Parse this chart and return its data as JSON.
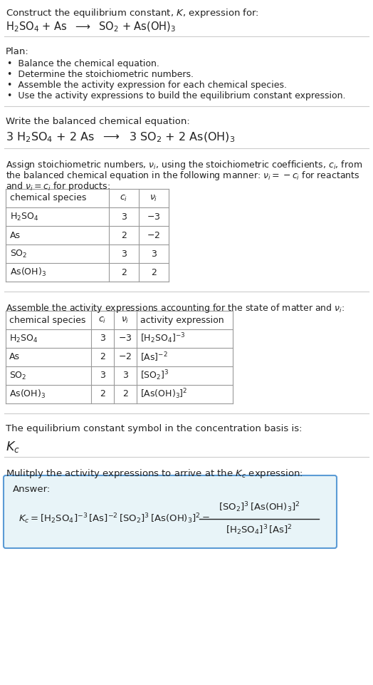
{
  "title_line1": "Construct the equilibrium constant, $K$, expression for:",
  "title_line2": "$\\mathrm{H_2SO_4}$ + As  $\\longrightarrow$  $\\mathrm{SO_2}$ + $\\mathrm{As(OH)_3}$",
  "plan_header": "Plan:",
  "plan_items": [
    "•  Balance the chemical equation.",
    "•  Determine the stoichiometric numbers.",
    "•  Assemble the activity expression for each chemical species.",
    "•  Use the activity expressions to build the equilibrium constant expression."
  ],
  "balanced_header": "Write the balanced chemical equation:",
  "balanced_eq": "3 $\\mathrm{H_2SO_4}$ + 2 As  $\\longrightarrow$  3 $\\mathrm{SO_2}$ + 2 $\\mathrm{As(OH)_3}$",
  "stoich_intro": "Assign stoichiometric numbers, $\\nu_i$, using the stoichiometric coefficients, $c_i$, from",
  "stoich_intro2": "the balanced chemical equation in the following manner: $\\nu_i = -c_i$ for reactants",
  "stoich_intro3": "and $\\nu_i = c_i$ for products:",
  "table1_cols": [
    "chemical species",
    "$c_i$",
    "$\\nu_i$"
  ],
  "table1_rows": [
    [
      "$\\mathrm{H_2SO_4}$",
      "3",
      "$-3$"
    ],
    [
      "As",
      "2",
      "$-2$"
    ],
    [
      "$\\mathrm{SO_2}$",
      "3",
      "3"
    ],
    [
      "$\\mathrm{As(OH)_3}$",
      "2",
      "2"
    ]
  ],
  "activity_header": "Assemble the activity expressions accounting for the state of matter and $\\nu_i$:",
  "table2_cols": [
    "chemical species",
    "$c_i$",
    "$\\nu_i$",
    "activity expression"
  ],
  "table2_rows": [
    [
      "$\\mathrm{H_2SO_4}$",
      "3",
      "$-3$",
      "$[\\mathrm{H_2SO_4}]^{-3}$"
    ],
    [
      "As",
      "2",
      "$-2$",
      "$[\\mathrm{As}]^{-2}$"
    ],
    [
      "$\\mathrm{SO_2}$",
      "3",
      "3",
      "$[\\mathrm{SO_2}]^{3}$"
    ],
    [
      "$\\mathrm{As(OH)_3}$",
      "2",
      "2",
      "$[\\mathrm{As(OH)_3}]^{2}$"
    ]
  ],
  "kc_symbol_header": "The equilibrium constant symbol in the concentration basis is:",
  "kc_symbol": "$K_c$",
  "multiply_header": "Mulitply the activity expressions to arrive at the $K_c$ expression:",
  "answer_label": "Answer:",
  "kc_eq_left": "$K_c = [\\mathrm{H_2SO_4}]^{-3}\\,[\\mathrm{As}]^{-2}\\,[\\mathrm{SO_2}]^{3}\\,[\\mathrm{As(OH)_3}]^{2} = $",
  "kc_numerator": "$[\\mathrm{SO_2}]^{3}\\,[\\mathrm{As(OH)_3}]^{2}$",
  "kc_denominator": "$[\\mathrm{H_2SO_4}]^{3}\\,[\\mathrm{As}]^{2}$",
  "bg_color": "#ffffff",
  "answer_box_color": "#e8f4f8",
  "answer_box_border": "#5b9bd5",
  "table_border_color": "#999999",
  "text_color": "#222222",
  "separator_color": "#cccccc",
  "font_size": 9.5,
  "small_font": 9.0
}
